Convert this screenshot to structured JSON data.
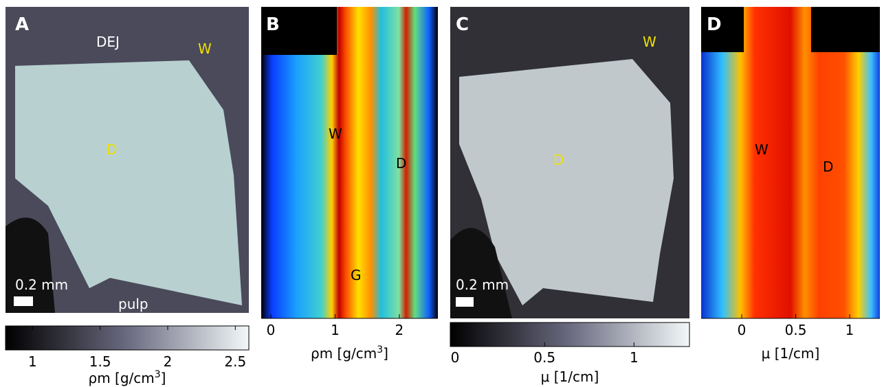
{
  "panels": [
    {
      "letter": "A",
      "labels": [
        "DEJ",
        "W",
        "D",
        "0.2 mm",
        "pulp"
      ],
      "axis": {
        "lim": [
          0.8,
          2.6
        ],
        "ticks": [
          1,
          1.5,
          2,
          2.5
        ],
        "label": {
          "main": "ρm [g/cm",
          "sup": "3",
          "end": "]"
        }
      }
    },
    {
      "letter": "B",
      "labels": [
        "W",
        "D",
        "G"
      ],
      "axis": {
        "lim": [
          -0.15,
          2.6
        ],
        "ticks": [
          0,
          1,
          2
        ],
        "label": {
          "main": "ρm [g/cm",
          "sup": "3",
          "end": "]"
        }
      }
    },
    {
      "letter": "C",
      "labels": [
        "W",
        "D",
        "0.2 mm"
      ],
      "axis": {
        "lim": [
          -0.027,
          1.31
        ],
        "ticks": [
          0,
          0.5,
          1
        ],
        "label": {
          "main": "μ [1/cm]",
          "sup": "",
          "end": ""
        }
      }
    },
    {
      "letter": "D",
      "labels": [
        "W",
        "D"
      ],
      "axis": {
        "lim": [
          -0.376,
          1.28
        ],
        "ticks": [
          0,
          0.5,
          1
        ],
        "label": {
          "main": "μ [1/cm]",
          "sup": "",
          "end": ""
        }
      }
    }
  ]
}
